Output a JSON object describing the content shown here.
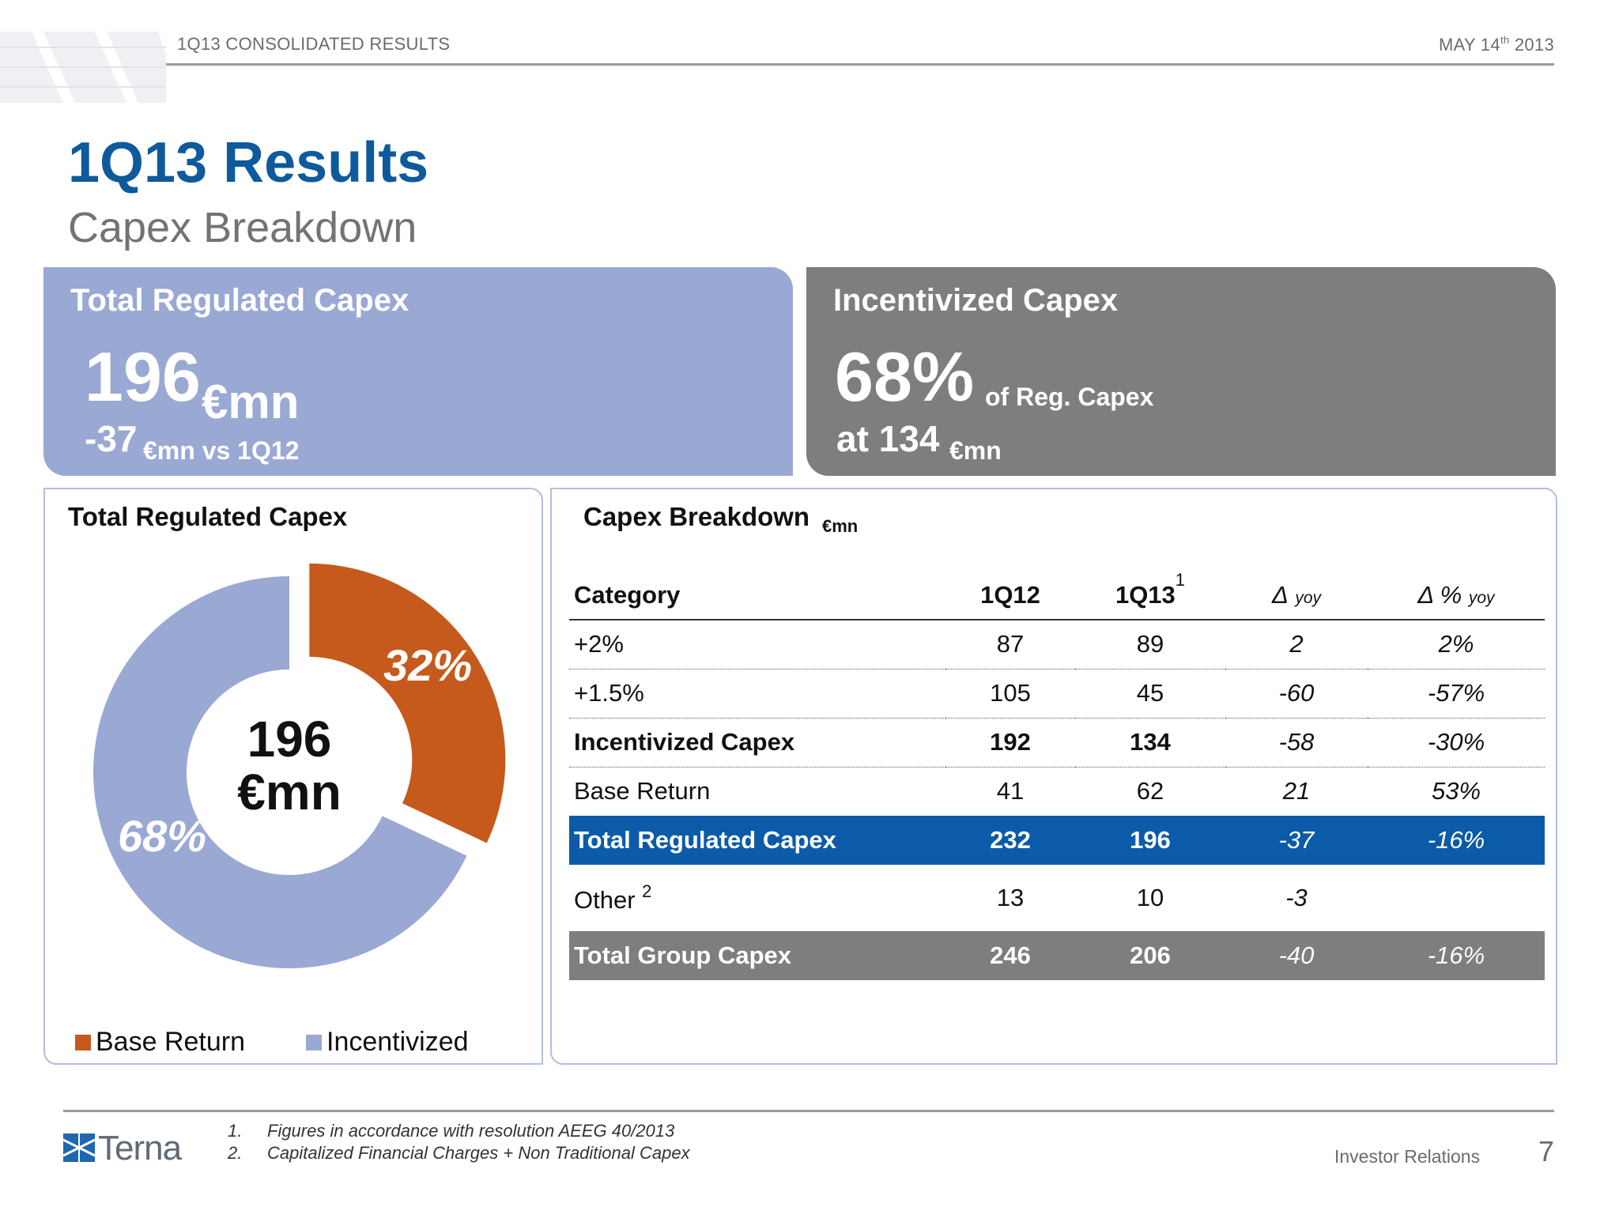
{
  "header": {
    "left_text": "1Q13 CONSOLIDATED RESULTS",
    "date_prefix": "MAY 14",
    "date_sup": "th",
    "date_year": "2013"
  },
  "title": "1Q13 Results",
  "subtitle": "Capex Breakdown",
  "kpi_left": {
    "title": "Total Regulated Capex",
    "value": "196",
    "unit": "€mn",
    "delta": "-37",
    "delta_suffix": "€mn vs 1Q12"
  },
  "kpi_right": {
    "title": "Incentivized Capex",
    "value": "68%",
    "of_text": "of  Reg. Capex",
    "at_text": "at 134",
    "at_unit": "€mn"
  },
  "chart_panel_title": "Total Regulated Capex",
  "table_panel_title": "Capex Breakdown",
  "table_panel_unit": "€mn",
  "chart_data": {
    "type": "pie",
    "title": "Total Regulated Capex",
    "center_label": [
      "196",
      "€mn"
    ],
    "slices": [
      {
        "name": "Base Return",
        "value": 32,
        "label": "32%",
        "color": "#c55a1c"
      },
      {
        "name": "Incentivized",
        "value": 68,
        "label": "68%",
        "color": "#9aa8d4"
      }
    ],
    "legend_position": "bottom"
  },
  "table": {
    "headers": {
      "category": "Category",
      "q12": "1Q12",
      "q13": "1Q13",
      "q13_sup": "1",
      "dyoy_symbol": "Δ",
      "dyoy_sub": "yoy",
      "dpct_symbol": "Δ %",
      "dpct_sub": "yoy"
    },
    "rows": [
      {
        "category": "+2%",
        "q12": "87",
        "q13": "89",
        "dyoy": "2",
        "dpct": "2%"
      },
      {
        "category": "+1.5%",
        "q12": "105",
        "q13": "45",
        "dyoy": "-60",
        "dpct": "-57%"
      },
      {
        "category": "Incentivized Capex",
        "q12": "192",
        "q13": "134",
        "dyoy": "-58",
        "dpct": "-30%"
      },
      {
        "category": "Base Return",
        "q12": "41",
        "q13": "62",
        "dyoy": "21",
        "dpct": "53%"
      },
      {
        "category": "Total Regulated Capex",
        "q12": "232",
        "q13": "196",
        "dyoy": "-37",
        "dpct": "-16%"
      },
      {
        "category": "Other",
        "sup": "2",
        "q12": "13",
        "q13": "10",
        "dyoy": "-3",
        "dpct": ""
      },
      {
        "category": "Total Group Capex",
        "q12": "246",
        "q13": "206",
        "dyoy": "-40",
        "dpct": "-16%"
      }
    ]
  },
  "footer": {
    "logo_text": "Terna",
    "notes": [
      {
        "num": "1.",
        "text": "Figures in accordance with resolution AEEG 40/2013"
      },
      {
        "num": "2.",
        "text": "Capitalized Financial Charges + Non Traditional Capex"
      }
    ],
    "section": "Investor Relations",
    "page": "7"
  },
  "colors": {
    "title_blue": "#0e5a9c",
    "kpi_left": "#9aa8d4",
    "kpi_right": "#7f7d7e",
    "highlight_row": "#0b5ba8",
    "base_return": "#c55a1c",
    "incentivized": "#9aa8d4"
  }
}
